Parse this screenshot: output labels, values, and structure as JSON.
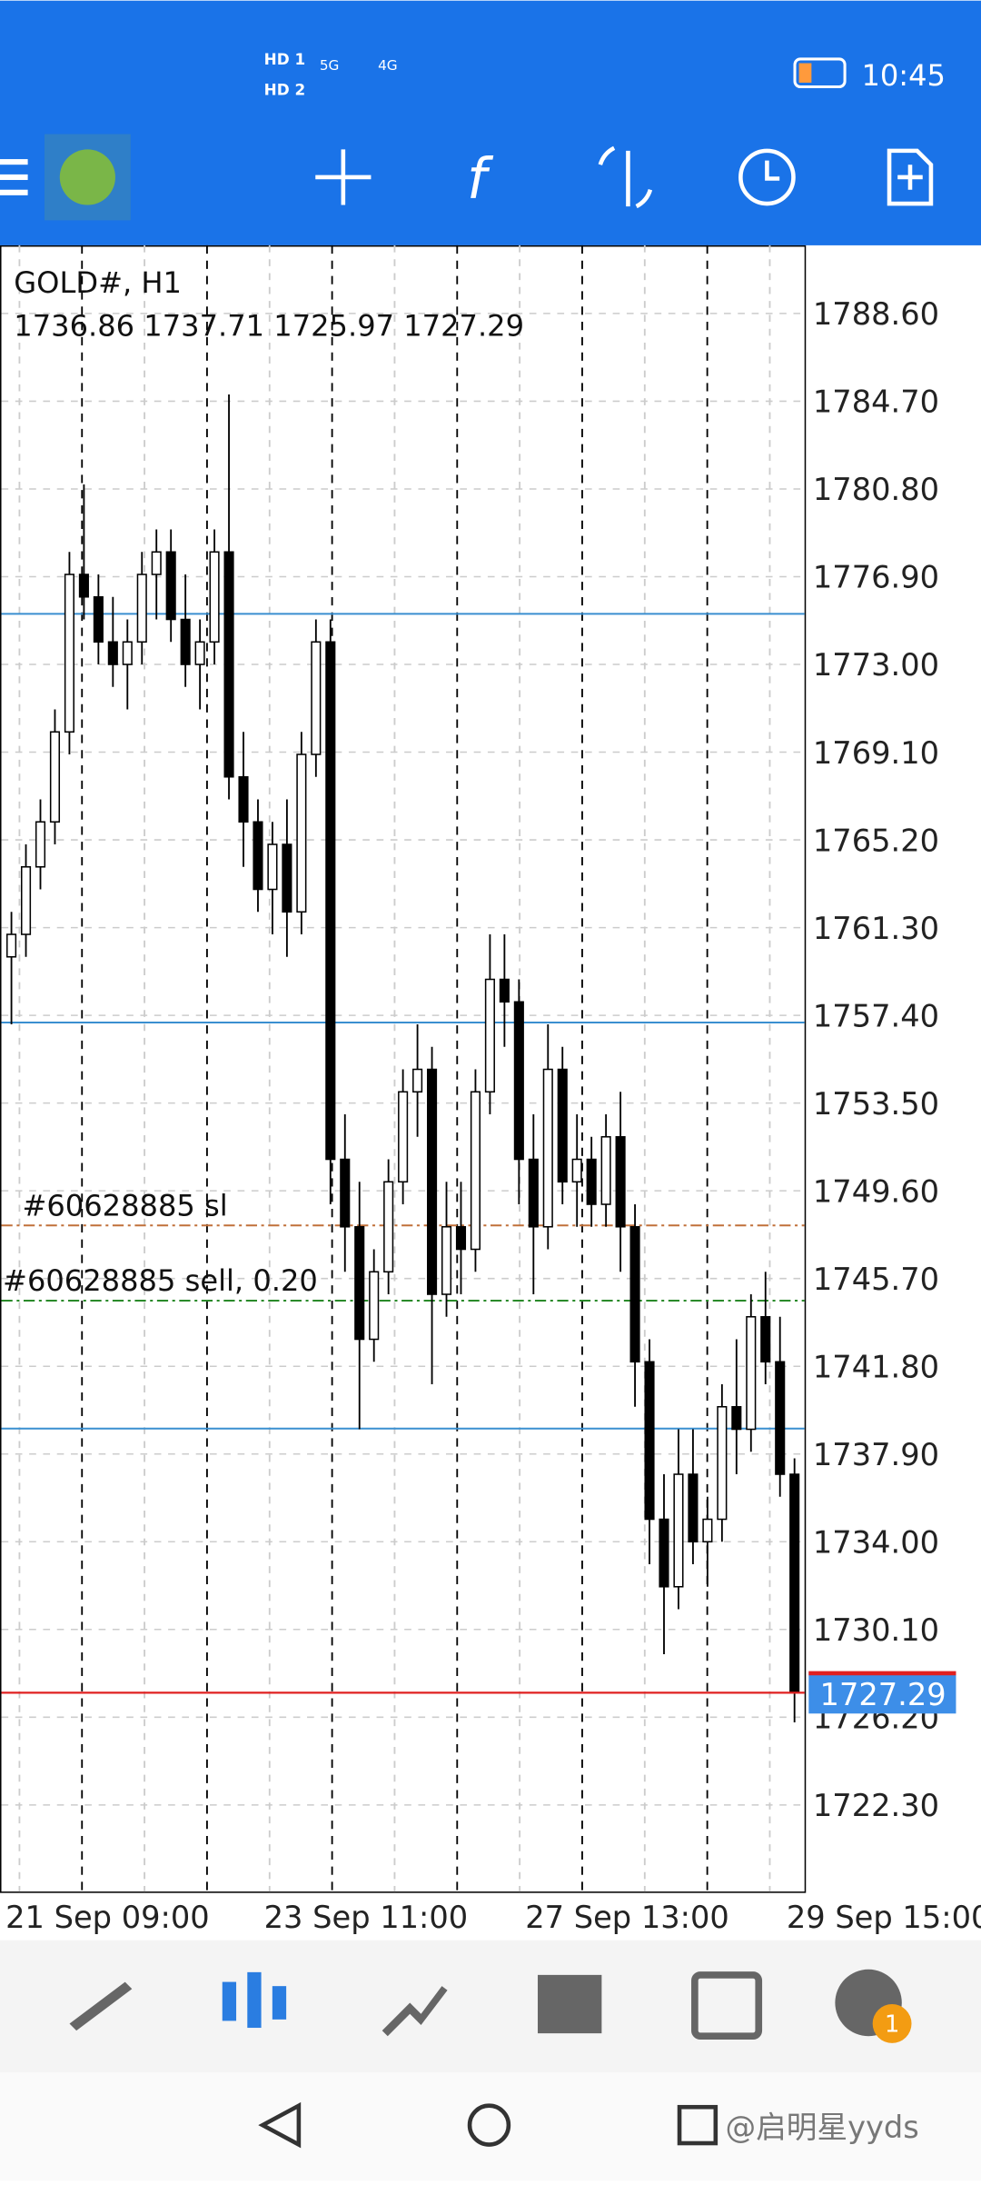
{
  "status_bar": {
    "network": [
      "5G",
      "4G"
    ],
    "time": "10:45"
  },
  "chart_data": {
    "type": "candlestick",
    "title": "GOLD#, H1",
    "info_line": "1736.86 1737.71 1725.97 1727.29",
    "open": [
      1760,
      1761,
      1764,
      1766,
      1770,
      1777,
      1776,
      1774,
      1773,
      1774,
      1777,
      1778,
      1775,
      1773,
      1774,
      1778,
      1768,
      1766,
      1763,
      1765,
      1762,
      1769,
      1774,
      1751,
      1748,
      1743,
      1746,
      1750,
      1754,
      1755,
      1745,
      1748,
      1747,
      1754,
      1759,
      1758,
      1751,
      1748,
      1755,
      1750,
      1751,
      1749,
      1752,
      1748,
      1742,
      1735,
      1732,
      1737,
      1734,
      1735,
      1740,
      1739,
      1744,
      1742,
      1737
    ],
    "high": [
      1762,
      1765,
      1767,
      1771,
      1778,
      1781,
      1777,
      1776,
      1775,
      1778,
      1779,
      1779,
      1777,
      1775,
      1779,
      1785,
      1770,
      1767,
      1766,
      1767,
      1770,
      1775,
      1775,
      1753,
      1750,
      1747,
      1751,
      1755,
      1757,
      1756,
      1750,
      1750,
      1755,
      1761,
      1761,
      1759,
      1753,
      1757,
      1756,
      1753,
      1752,
      1753,
      1754,
      1749,
      1743,
      1737,
      1739,
      1739,
      1736,
      1741,
      1743,
      1745,
      1746,
      1744,
      1737.71
    ],
    "low": [
      1757,
      1760,
      1763,
      1765,
      1769,
      1775,
      1773,
      1772,
      1771,
      1773,
      1775,
      1774,
      1772,
      1771,
      1773,
      1767,
      1764,
      1762,
      1761,
      1760,
      1761,
      1768,
      1749,
      1746,
      1739,
      1742,
      1745,
      1749,
      1752,
      1741,
      1744,
      1745,
      1746,
      1753,
      1756,
      1749,
      1745,
      1747,
      1749,
      1748,
      1748,
      1748,
      1746,
      1740,
      1733,
      1729,
      1731,
      1733,
      1732,
      1734,
      1737,
      1738,
      1741,
      1736,
      1725.97
    ],
    "close": [
      1761,
      1764,
      1766,
      1770,
      1777,
      1776,
      1774,
      1773,
      1774,
      1777,
      1778,
      1775,
      1773,
      1774,
      1778,
      1768,
      1766,
      1763,
      1765,
      1762,
      1769,
      1774,
      1751,
      1748,
      1743,
      1746,
      1750,
      1754,
      1755,
      1745,
      1748,
      1747,
      1754,
      1759,
      1758,
      1751,
      1748,
      1755,
      1750,
      1751,
      1749,
      1752,
      1748,
      1742,
      1735,
      1732,
      1737,
      1734,
      1735,
      1740,
      1739,
      1744,
      1742,
      1737,
      1727.29
    ],
    "ylim": [
      1718.45,
      1791.63
    ],
    "yticks": [
      {
        "value": 1788.6,
        "label": "1788.60"
      },
      {
        "value": 1784.7,
        "label": "1784.70"
      },
      {
        "value": 1780.8,
        "label": "1780.80"
      },
      {
        "value": 1776.9,
        "label": "1776.90"
      },
      {
        "value": 1773,
        "label": "1773.00"
      },
      {
        "value": 1769.1,
        "label": "1769.10"
      },
      {
        "value": 1765.2,
        "label": "1765.20"
      },
      {
        "value": 1761.3,
        "label": "1761.30"
      },
      {
        "value": 1757.4,
        "label": "1757.40"
      },
      {
        "value": 1753.5,
        "label": "1753.50"
      },
      {
        "value": 1749.6,
        "label": "1749.60"
      },
      {
        "value": 1745.7,
        "label": "1745.70"
      },
      {
        "value": 1741.8,
        "label": "1741.80"
      },
      {
        "value": 1737.9,
        "label": "1737.90"
      },
      {
        "value": 1734,
        "label": "1734.00"
      },
      {
        "value": 1730.1,
        "label": "1730.10"
      },
      {
        "value": 1726.2,
        "label": "1726.20"
      },
      {
        "value": 1722.3,
        "label": "1722.30"
      }
    ],
    "x_labels": [
      "21 Sep 09:00",
      "23 Sep 11:00",
      "27 Sep 13:00",
      "29 Sep 15:00"
    ],
    "hlines": [
      {
        "value": 1775.25,
        "color": "#3a8fd0"
      },
      {
        "value": 1757.08,
        "color": "#3a8fd0"
      },
      {
        "value": 1739.03,
        "color": "#3a8fd0"
      }
    ],
    "orders": [
      {
        "label": "#60628885 sl",
        "value": 1748.06,
        "color": "#c0703a"
      },
      {
        "label": "#60628885 sell, 0.20",
        "value": 1744.72,
        "color": "#2a8a2a"
      }
    ],
    "bid": {
      "value": 1727.29,
      "color": "#e02020",
      "tag_color": "#3d8ee8"
    }
  },
  "bottom_nav": {
    "badge": "1"
  },
  "watermark": "@启明星yyds"
}
